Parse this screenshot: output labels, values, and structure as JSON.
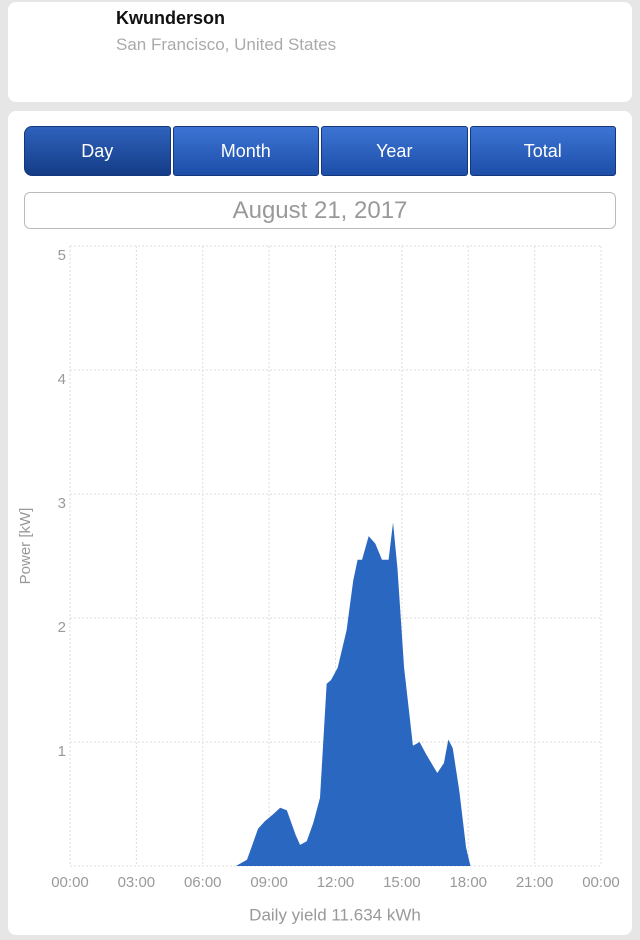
{
  "header": {
    "title": "Kwunderson",
    "subtitle": "San Francisco, United States"
  },
  "tabs": [
    "Day",
    "Month",
    "Year",
    "Total"
  ],
  "date": "August 21, 2017",
  "chart_data": {
    "type": "area",
    "color": "#2a67c0",
    "grid": true,
    "y_label": "Power [kW]",
    "footer": "Daily yield 11.634 kWh",
    "xlim": [
      0,
      24
    ],
    "ylim": [
      0,
      5
    ],
    "xticks": [
      {
        "value": 0,
        "label": "00:00"
      },
      {
        "value": 3,
        "label": "03:00"
      },
      {
        "value": 6,
        "label": "06:00"
      },
      {
        "value": 9,
        "label": "09:00"
      },
      {
        "value": 12,
        "label": "12:00"
      },
      {
        "value": 15,
        "label": "15:00"
      },
      {
        "value": 18,
        "label": "18:00"
      },
      {
        "value": 21,
        "label": "21:00"
      },
      {
        "value": 24,
        "label": "00:00"
      }
    ],
    "yticks": [
      1,
      2,
      3,
      4,
      5
    ],
    "x": [
      7.5,
      8.0,
      8.3,
      8.5,
      8.8,
      9.2,
      9.5,
      9.8,
      10.2,
      10.4,
      10.7,
      11.0,
      11.3,
      11.6,
      11.8,
      12.1,
      12.5,
      12.8,
      13.0,
      13.2,
      13.5,
      13.8,
      14.1,
      14.4,
      14.6,
      14.8,
      15.1,
      15.5,
      15.8,
      16.1,
      16.6,
      16.9,
      17.1,
      17.3,
      17.6,
      17.9,
      18.1
    ],
    "values": [
      0,
      0.05,
      0.2,
      0.3,
      0.36,
      0.42,
      0.47,
      0.45,
      0.25,
      0.17,
      0.2,
      0.35,
      0.55,
      1.47,
      1.5,
      1.6,
      1.9,
      2.3,
      2.47,
      2.47,
      2.66,
      2.6,
      2.47,
      2.47,
      2.77,
      2.4,
      1.6,
      0.97,
      1.0,
      0.9,
      0.75,
      0.83,
      1.02,
      0.95,
      0.6,
      0.15,
      0
    ]
  }
}
